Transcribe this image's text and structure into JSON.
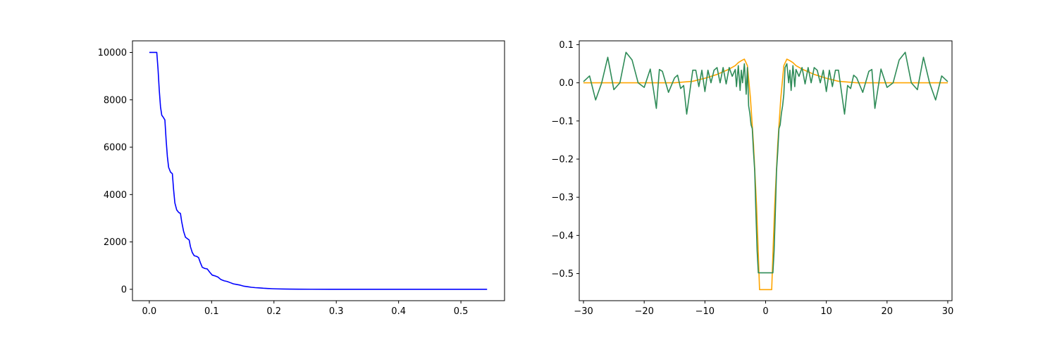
{
  "chart_data": [
    {
      "type": "line",
      "title": "",
      "xlabel": "",
      "ylabel": "",
      "xlim": [
        -0.027,
        0.57
      ],
      "ylim": [
        -480,
        10490
      ],
      "xticks": [
        0.0,
        0.1,
        0.2,
        0.3,
        0.4,
        0.5
      ],
      "xtick_labels": [
        "0.0",
        "0.1",
        "0.2",
        "0.3",
        "0.4",
        "0.5"
      ],
      "yticks": [
        0,
        2000,
        4000,
        6000,
        8000,
        10000
      ],
      "ytick_labels": [
        "0",
        "2000",
        "4000",
        "6000",
        "8000",
        "10000"
      ],
      "grid": false,
      "legend": "none",
      "series": [
        {
          "color": "#0000ff",
          "x": [
            0.0,
            0.012,
            0.014,
            0.016,
            0.018,
            0.02,
            0.022,
            0.025,
            0.027,
            0.029,
            0.031,
            0.034,
            0.037,
            0.039,
            0.041,
            0.044,
            0.047,
            0.05,
            0.052,
            0.055,
            0.058,
            0.061,
            0.064,
            0.066,
            0.069,
            0.072,
            0.076,
            0.079,
            0.082,
            0.085,
            0.089,
            0.093,
            0.097,
            0.101,
            0.105,
            0.11,
            0.115,
            0.12,
            0.125,
            0.13,
            0.135,
            0.14,
            0.146,
            0.152,
            0.158,
            0.164,
            0.17,
            0.176,
            0.183,
            0.19,
            0.197,
            0.205,
            0.215,
            0.225,
            0.24,
            0.26,
            0.29,
            0.33,
            0.38,
            0.44,
            0.5,
            0.542
          ],
          "y": [
            10000,
            10000,
            9300,
            8400,
            7700,
            7350,
            7280,
            7150,
            6300,
            5600,
            5150,
            4950,
            4880,
            4200,
            3650,
            3350,
            3250,
            3200,
            2850,
            2450,
            2200,
            2140,
            2080,
            1800,
            1550,
            1420,
            1390,
            1340,
            1120,
            930,
            880,
            860,
            720,
            600,
            570,
            520,
            410,
            360,
            330,
            280,
            230,
            205,
            175,
            130,
            110,
            85,
            70,
            60,
            45,
            35,
            25,
            18,
            12,
            8,
            5,
            3,
            2,
            1,
            0,
            0,
            0,
            0
          ]
        }
      ]
    },
    {
      "type": "line",
      "title": "",
      "xlabel": "",
      "ylabel": "",
      "xlim": [
        -3.07,
        3.07
      ],
      "ylim": [
        -0.571,
        0.11
      ],
      "xticks": [
        -3,
        -2,
        -1,
        0,
        1,
        2,
        3
      ],
      "xtick_labels": [
        "−30",
        "−20",
        "−10",
        "0",
        "10",
        "20",
        "30"
      ],
      "yticks": [
        -0.5,
        -0.4,
        -0.3,
        -0.2,
        -0.1,
        0.0,
        0.1
      ],
      "ytick_labels": [
        "−0.5",
        "−0.4",
        "−0.3",
        "−0.2",
        "−0.1",
        "0.0",
        "0.1"
      ],
      "grid": false,
      "legend": "none",
      "series": [
        {
          "color": "#ffa500",
          "x": [
            -3.0,
            -2.5,
            -2.0,
            -1.5,
            -1.2,
            -1.0,
            -0.8,
            -0.6,
            -0.5,
            -0.45,
            -0.4,
            -0.35,
            -0.3,
            -0.25,
            -0.2,
            -0.15,
            -0.12,
            -0.1,
            0.1,
            0.12,
            0.15,
            0.2,
            0.25,
            0.3,
            0.35,
            0.4,
            0.45,
            0.5,
            0.6,
            0.8,
            1.0,
            1.2,
            1.5,
            2.0,
            2.5,
            3.0
          ],
          "y": [
            0.0,
            0.0,
            0.0,
            0.0,
            0.004,
            0.012,
            0.022,
            0.036,
            0.045,
            0.053,
            0.058,
            0.062,
            0.045,
            -0.04,
            -0.16,
            -0.32,
            -0.45,
            -0.542,
            -0.542,
            -0.45,
            -0.32,
            -0.16,
            -0.04,
            0.045,
            0.062,
            0.058,
            0.053,
            0.045,
            0.036,
            0.022,
            0.012,
            0.004,
            0.0,
            0.0,
            0.0,
            0.0
          ]
        },
        {
          "color": "#2e8b57",
          "x": [
            -3.0,
            -2.9,
            -2.8,
            -2.7,
            -2.6,
            -2.5,
            -2.4,
            -2.3,
            -2.2,
            -2.1,
            -2.0,
            -1.9,
            -1.8,
            -1.75,
            -1.7,
            -1.6,
            -1.5,
            -1.45,
            -1.4,
            -1.35,
            -1.3,
            -1.2,
            -1.15,
            -1.1,
            -1.05,
            -1.0,
            -0.95,
            -0.9,
            -0.85,
            -0.8,
            -0.75,
            -0.7,
            -0.65,
            -0.6,
            -0.55,
            -0.5,
            -0.48,
            -0.45,
            -0.42,
            -0.4,
            -0.38,
            -0.35,
            -0.32,
            -0.3,
            -0.28,
            -0.26,
            -0.24,
            -0.22,
            -0.2,
            -0.18,
            -0.16,
            -0.14,
            -0.12,
            -0.1,
            0.1,
            0.12,
            0.14,
            0.16,
            0.18,
            0.2,
            0.22,
            0.24,
            0.26,
            0.28,
            0.3,
            0.32,
            0.35,
            0.38,
            0.4,
            0.42,
            0.45,
            0.48,
            0.5,
            0.55,
            0.6,
            0.65,
            0.7,
            0.75,
            0.8,
            0.85,
            0.9,
            0.95,
            1.0,
            1.05,
            1.1,
            1.15,
            1.2,
            1.3,
            1.35,
            1.4,
            1.45,
            1.5,
            1.6,
            1.7,
            1.75,
            1.8,
            1.9,
            2.0,
            2.1,
            2.2,
            2.3,
            2.4,
            2.5,
            2.6,
            2.7,
            2.8,
            2.9,
            3.0
          ],
          "y": [
            0.003,
            0.018,
            -0.045,
            0.0,
            0.067,
            -0.018,
            0.0,
            0.08,
            0.06,
            0.0,
            -0.012,
            0.036,
            -0.067,
            0.035,
            0.03,
            -0.025,
            0.013,
            0.02,
            -0.015,
            -0.007,
            -0.082,
            0.033,
            0.033,
            -0.01,
            0.033,
            -0.023,
            0.033,
            0.0,
            0.033,
            0.04,
            0.0,
            0.04,
            -0.003,
            0.04,
            0.017,
            0.035,
            -0.01,
            0.045,
            -0.02,
            0.033,
            0.0,
            0.05,
            -0.03,
            0.04,
            -0.06,
            -0.08,
            -0.11,
            -0.12,
            -0.18,
            -0.23,
            -0.34,
            -0.44,
            -0.498,
            -0.498,
            -0.498,
            -0.498,
            -0.44,
            -0.34,
            -0.23,
            -0.18,
            -0.12,
            -0.11,
            -0.08,
            -0.06,
            -0.03,
            0.04,
            0.05,
            0.0,
            0.033,
            -0.02,
            0.045,
            -0.01,
            0.035,
            0.017,
            0.04,
            -0.003,
            0.04,
            0.0,
            0.04,
            0.033,
            0.0,
            0.033,
            -0.023,
            0.033,
            -0.01,
            0.033,
            0.033,
            -0.082,
            -0.007,
            -0.015,
            0.02,
            0.013,
            -0.025,
            0.03,
            0.035,
            -0.067,
            0.036,
            -0.012,
            0.0,
            0.06,
            0.08,
            0.0,
            -0.018,
            0.067,
            0.0,
            -0.045,
            0.018,
            0.003
          ]
        }
      ]
    }
  ]
}
